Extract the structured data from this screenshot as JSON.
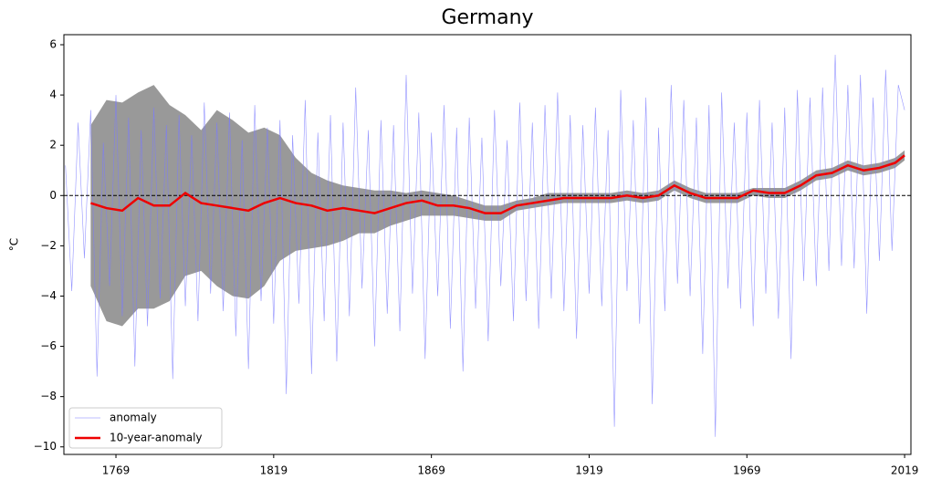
{
  "chart_data": {
    "type": "line",
    "title": "Germany",
    "ylabel": "°C",
    "xlim": [
      1752.5,
      2021
    ],
    "xticks": [
      1769,
      1819,
      1869,
      1919,
      1969,
      2019
    ],
    "ylim": [
      -10.3,
      6.4
    ],
    "yticks": [
      {
        "value": -10,
        "label": "−10"
      },
      {
        "value": -8,
        "label": "−8"
      },
      {
        "value": -6,
        "label": "−6"
      },
      {
        "value": -4,
        "label": "−4"
      },
      {
        "value": -2,
        "label": "−2"
      },
      0,
      2,
      4,
      6
    ],
    "hline": 0,
    "legend": "lower left",
    "band": {
      "color": "#808080",
      "x": [
        1761,
        1766,
        1771,
        1776,
        1781,
        1786,
        1791,
        1796,
        1801,
        1806,
        1811,
        1816,
        1821,
        1826,
        1831,
        1836,
        1841,
        1846,
        1851,
        1856,
        1861,
        1866,
        1871,
        1876,
        1881,
        1886,
        1891,
        1896,
        1901,
        1906,
        1911,
        1916,
        1921,
        1926,
        1931,
        1936,
        1941,
        1946,
        1951,
        1956,
        1961,
        1966,
        1971,
        1976,
        1981,
        1986,
        1991,
        1996,
        2001,
        2006,
        2011,
        2016,
        2019
      ],
      "upper": [
        2.8,
        3.8,
        3.7,
        4.1,
        4.4,
        3.6,
        3.2,
        2.6,
        3.4,
        3.0,
        2.5,
        2.7,
        2.4,
        1.5,
        0.9,
        0.6,
        0.4,
        0.3,
        0.2,
        0.2,
        0.1,
        0.2,
        0.1,
        0.0,
        -0.2,
        -0.4,
        -0.4,
        -0.2,
        -0.1,
        0.1,
        0.1,
        0.1,
        0.1,
        0.1,
        0.2,
        0.1,
        0.2,
        0.6,
        0.3,
        0.1,
        0.1,
        0.1,
        0.3,
        0.3,
        0.3,
        0.6,
        1.0,
        1.1,
        1.4,
        1.2,
        1.3,
        1.5,
        1.8
      ],
      "lower": [
        -3.6,
        -5.0,
        -5.2,
        -4.5,
        -4.5,
        -4.2,
        -3.2,
        -3.0,
        -3.6,
        -4.0,
        -4.1,
        -3.6,
        -2.6,
        -2.2,
        -2.1,
        -2.0,
        -1.8,
        -1.5,
        -1.5,
        -1.2,
        -1.0,
        -0.8,
        -0.8,
        -0.8,
        -0.9,
        -1.0,
        -1.0,
        -0.6,
        -0.5,
        -0.4,
        -0.3,
        -0.3,
        -0.3,
        -0.3,
        -0.2,
        -0.3,
        -0.2,
        0.2,
        -0.1,
        -0.3,
        -0.3,
        -0.3,
        0.0,
        -0.1,
        -0.1,
        0.2,
        0.6,
        0.7,
        1.0,
        0.8,
        0.9,
        1.1,
        1.4
      ]
    },
    "series": [
      {
        "name": "anomaly",
        "color": "#7b7bff",
        "width": 0.6,
        "x": [
          1753,
          1755,
          1757,
          1759,
          1761,
          1763,
          1765,
          1767,
          1769,
          1771,
          1773,
          1775,
          1777,
          1779,
          1781,
          1783,
          1785,
          1787,
          1789,
          1791,
          1793,
          1795,
          1797,
          1799,
          1801,
          1803,
          1805,
          1807,
          1809,
          1811,
          1813,
          1815,
          1817,
          1819,
          1821,
          1823,
          1825,
          1827,
          1829,
          1831,
          1833,
          1835,
          1837,
          1839,
          1841,
          1843,
          1845,
          1847,
          1849,
          1851,
          1853,
          1855,
          1857,
          1859,
          1861,
          1863,
          1865,
          1867,
          1869,
          1871,
          1873,
          1875,
          1877,
          1879,
          1881,
          1883,
          1885,
          1887,
          1889,
          1891,
          1893,
          1895,
          1897,
          1899,
          1901,
          1903,
          1905,
          1907,
          1909,
          1911,
          1913,
          1915,
          1917,
          1919,
          1921,
          1923,
          1925,
          1927,
          1929,
          1931,
          1933,
          1935,
          1937,
          1939,
          1941,
          1943,
          1945,
          1947,
          1949,
          1951,
          1953,
          1955,
          1957,
          1959,
          1961,
          1963,
          1965,
          1967,
          1969,
          1971,
          1973,
          1975,
          1977,
          1979,
          1981,
          1983,
          1985,
          1987,
          1989,
          1991,
          1993,
          1995,
          1997,
          1999,
          2001,
          2003,
          2005,
          2007,
          2009,
          2011,
          2013,
          2015,
          2017,
          2019
        ],
        "values": [
          1.2,
          -3.8,
          2.9,
          -2.5,
          3.4,
          -7.2,
          2.1,
          -3.6,
          4.0,
          -4.8,
          3.1,
          -6.8,
          2.6,
          -5.2,
          3.5,
          -4.1,
          2.8,
          -7.3,
          3.2,
          -4.4,
          2.4,
          -5.0,
          3.7,
          -3.9,
          2.9,
          -4.6,
          3.3,
          -5.6,
          2.2,
          -6.9,
          3.6,
          -4.2,
          2.7,
          -5.1,
          3.0,
          -7.9,
          2.4,
          -4.3,
          3.8,
          -7.1,
          2.5,
          -5.0,
          3.2,
          -6.6,
          2.9,
          -4.8,
          4.3,
          -3.7,
          2.6,
          -6.0,
          3.0,
          -4.7,
          2.8,
          -5.4,
          4.8,
          -3.9,
          3.3,
          -6.5,
          2.5,
          -4.0,
          3.6,
          -5.3,
          2.7,
          -7.0,
          3.1,
          -4.5,
          2.3,
          -5.8,
          3.4,
          -3.6,
          2.2,
          -5.0,
          3.7,
          -4.2,
          2.9,
          -5.3,
          3.6,
          -4.1,
          4.1,
          -4.6,
          3.2,
          -5.7,
          2.8,
          -3.9,
          3.5,
          -4.4,
          2.6,
          -9.2,
          4.2,
          -3.8,
          3.0,
          -5.1,
          3.9,
          -8.3,
          2.7,
          -4.6,
          4.4,
          -3.5,
          3.8,
          -4.0,
          3.1,
          -6.3,
          3.6,
          -9.6,
          4.1,
          -3.7,
          2.9,
          -4.5,
          3.3,
          -5.2,
          3.8,
          -3.9,
          2.9,
          -4.9,
          3.5,
          -6.5,
          4.2,
          -3.4,
          3.9,
          -3.6,
          4.3,
          -3.0,
          5.6,
          -2.8,
          4.4,
          -2.9,
          4.8,
          -4.7,
          3.9,
          -2.6,
          5.0,
          -2.2,
          4.4,
          3.4
        ]
      },
      {
        "name": "10-year-anomaly",
        "color": "#ee0000",
        "width": 2.5,
        "x": [
          1761,
          1766,
          1771,
          1776,
          1781,
          1786,
          1791,
          1796,
          1801,
          1806,
          1811,
          1816,
          1821,
          1826,
          1831,
          1836,
          1841,
          1846,
          1851,
          1856,
          1861,
          1866,
          1871,
          1876,
          1881,
          1886,
          1891,
          1896,
          1901,
          1906,
          1911,
          1916,
          1921,
          1926,
          1931,
          1936,
          1941,
          1946,
          1951,
          1956,
          1961,
          1966,
          1971,
          1976,
          1981,
          1986,
          1991,
          1996,
          2001,
          2006,
          2011,
          2016,
          2019
        ],
        "values": [
          -0.3,
          -0.5,
          -0.6,
          -0.1,
          -0.4,
          -0.4,
          0.1,
          -0.3,
          -0.4,
          -0.5,
          -0.6,
          -0.3,
          -0.1,
          -0.3,
          -0.4,
          -0.6,
          -0.5,
          -0.6,
          -0.7,
          -0.5,
          -0.3,
          -0.2,
          -0.4,
          -0.4,
          -0.5,
          -0.7,
          -0.7,
          -0.4,
          -0.3,
          -0.2,
          -0.1,
          -0.1,
          -0.1,
          -0.1,
          0.0,
          -0.1,
          0.0,
          0.4,
          0.1,
          -0.1,
          -0.1,
          -0.1,
          0.2,
          0.1,
          0.1,
          0.4,
          0.8,
          0.9,
          1.2,
          1.0,
          1.1,
          1.3,
          1.6
        ]
      }
    ]
  }
}
